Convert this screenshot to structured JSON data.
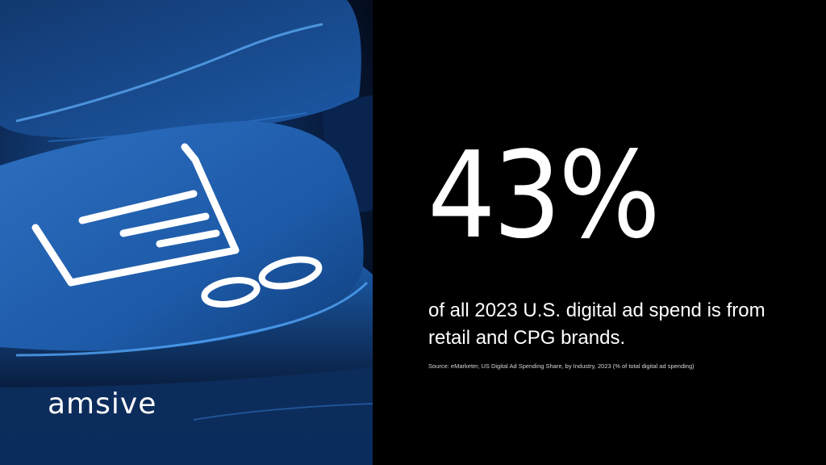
{
  "brand": {
    "logo_text": "amsive"
  },
  "headline": {
    "stat": "43%",
    "description": "of all 2023 U.S. digital ad spend is from retail and CPG brands.",
    "source": "Source: eMarketer, US Digital Ad Spending Share, by Industry, 2023 (% of total digital ad spending)"
  },
  "image": {
    "subject": "shopping-cart keyboard key",
    "icon": "shopping-cart-icon"
  },
  "colors": {
    "background": "#000000",
    "photo_blue": "#1b5fae",
    "photo_dark": "#06142b",
    "text": "#ffffff"
  }
}
